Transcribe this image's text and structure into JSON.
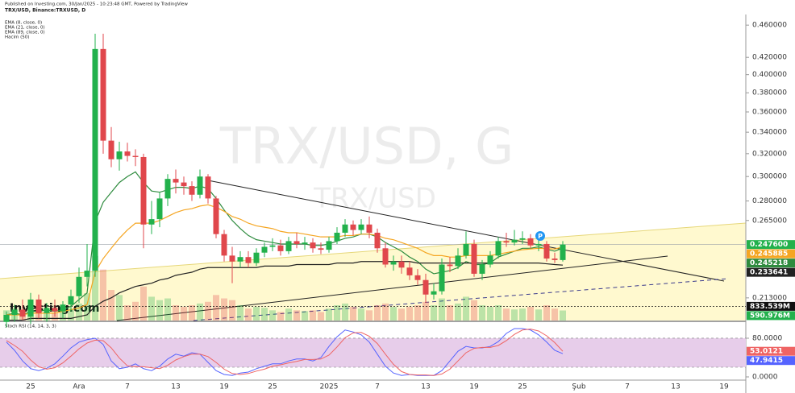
{
  "header": {
    "published": "Published on Investing.com, 30/Jan/2025 - 10:23:48 GMT, Powered by TradingView"
  },
  "watermark": {
    "main": "TRX/USD, G",
    "sub": "TRX/USD"
  },
  "logo": "Investing.com",
  "marker": "P",
  "chart_data": [
    {
      "type": "candlestick",
      "title": "TRX/USD, Binance:TRXUSD, D",
      "categories": [
        null,
        null,
        null,
        "25",
        null,
        null,
        null,
        null,
        null,
        "Ara",
        null,
        null,
        null,
        null,
        null,
        "7",
        null,
        null,
        null,
        null,
        null,
        "13",
        null,
        null,
        null,
        null,
        null,
        "19",
        null,
        null,
        null,
        null,
        null,
        "25",
        null,
        null,
        null,
        null,
        null,
        null,
        "2025",
        null,
        null,
        null,
        null,
        null,
        "7",
        null,
        null,
        null,
        null,
        null,
        "13",
        null,
        null,
        null,
        null,
        null,
        "19",
        null,
        null,
        null,
        null,
        null,
        "25",
        null,
        null,
        null,
        null,
        null,
        null,
        "Şub",
        null,
        null,
        null,
        null,
        null,
        "7",
        null,
        null,
        null,
        null,
        null,
        "13",
        null,
        null,
        null,
        null,
        null,
        "19",
        null,
        null
      ],
      "open": [
        0.199,
        0.203,
        0.206,
        0.202,
        0.212,
        0.204,
        0.207,
        0.205,
        0.209,
        0.214,
        0.226,
        0.23,
        0.43,
        0.332,
        0.315,
        0.322,
        0.318,
        0.317,
        0.262,
        0.266,
        0.282,
        0.298,
        0.295,
        0.292,
        0.285,
        0.3,
        0.282,
        0.255,
        0.24,
        0.236,
        0.239,
        0.235,
        0.242,
        0.246,
        0.247,
        0.243,
        0.25,
        0.248,
        0.249,
        0.245,
        0.244,
        0.25,
        0.256,
        0.262,
        0.258,
        0.262,
        0.256,
        0.245,
        0.234,
        0.236,
        0.232,
        0.227,
        0.224,
        0.215,
        0.217,
        0.234,
        0.233,
        0.24,
        0.248,
        0.228,
        0.234,
        0.24,
        0.25,
        0.249,
        0.251,
        0.252,
        0.247,
        0.248,
        0.238,
        0.237,
        null,
        null,
        null,
        null,
        null,
        null,
        null,
        null,
        null,
        null,
        null,
        null,
        null,
        null,
        null,
        null,
        null,
        null,
        null,
        null,
        null,
        null
      ],
      "high": [
        0.205,
        0.209,
        0.212,
        0.216,
        0.215,
        0.21,
        0.212,
        0.211,
        0.218,
        0.232,
        0.248,
        0.449,
        0.449,
        0.345,
        0.331,
        0.33,
        0.324,
        0.32,
        0.28,
        0.287,
        0.302,
        0.306,
        0.3,
        0.296,
        0.306,
        0.302,
        0.284,
        0.258,
        0.246,
        0.243,
        0.243,
        0.245,
        0.249,
        0.252,
        0.251,
        0.253,
        0.256,
        0.253,
        0.252,
        0.249,
        0.253,
        0.26,
        0.266,
        0.265,
        0.266,
        0.268,
        0.259,
        0.249,
        0.24,
        0.24,
        0.236,
        0.231,
        0.228,
        0.222,
        0.238,
        0.239,
        0.245,
        0.257,
        0.251,
        0.237,
        0.243,
        0.253,
        0.256,
        0.258,
        0.257,
        0.255,
        0.251,
        0.25,
        0.242,
        0.25,
        null,
        null,
        null,
        null,
        null,
        null,
        null,
        null,
        null,
        null,
        null,
        null,
        null,
        null,
        null,
        null,
        null,
        null,
        null,
        null,
        null,
        null
      ],
      "low": [
        0.196,
        0.199,
        0.2,
        0.198,
        0.201,
        0.199,
        0.202,
        0.201,
        0.205,
        0.21,
        0.22,
        0.226,
        0.32,
        0.308,
        0.305,
        0.313,
        0.309,
        0.245,
        0.255,
        0.26,
        0.276,
        0.286,
        0.285,
        0.28,
        0.282,
        0.278,
        0.252,
        0.236,
        0.222,
        0.232,
        0.232,
        0.233,
        0.239,
        0.243,
        0.24,
        0.241,
        0.245,
        0.244,
        0.242,
        0.241,
        0.242,
        0.248,
        0.253,
        0.254,
        0.255,
        0.252,
        0.242,
        0.232,
        0.23,
        0.228,
        0.224,
        0.221,
        0.21,
        0.212,
        0.215,
        0.229,
        0.231,
        0.238,
        0.226,
        0.224,
        0.232,
        0.238,
        0.246,
        0.247,
        0.248,
        0.245,
        0.243,
        0.236,
        0.235,
        0.236,
        null,
        null,
        null,
        null,
        null,
        null,
        null,
        null,
        null,
        null,
        null,
        null,
        null,
        null,
        null,
        null,
        null,
        null,
        null,
        null,
        null,
        null
      ],
      "close": [
        0.203,
        0.206,
        0.202,
        0.212,
        0.204,
        0.207,
        0.205,
        0.209,
        0.214,
        0.226,
        0.23,
        0.43,
        0.332,
        0.315,
        0.322,
        0.318,
        0.317,
        0.262,
        0.266,
        0.282,
        0.298,
        0.295,
        0.292,
        0.285,
        0.3,
        0.282,
        0.255,
        0.24,
        0.236,
        0.239,
        0.235,
        0.242,
        0.246,
        0.247,
        0.243,
        0.25,
        0.248,
        0.249,
        0.245,
        0.244,
        0.25,
        0.256,
        0.262,
        0.258,
        0.262,
        0.256,
        0.245,
        0.234,
        0.236,
        0.232,
        0.227,
        0.224,
        0.215,
        0.217,
        0.234,
        0.233,
        0.24,
        0.248,
        0.228,
        0.234,
        0.24,
        0.25,
        0.249,
        0.251,
        0.252,
        0.247,
        0.248,
        0.238,
        0.237,
        0.2476,
        null,
        null,
        null,
        null,
        null,
        null,
        null,
        null,
        null,
        null,
        null,
        null,
        null,
        null,
        null,
        null,
        null,
        null,
        null,
        null,
        null,
        null
      ],
      "up_color": "#22b14c",
      "down_color": "#e0474c",
      "series": [
        {
          "name": "EMA (8, close, 0)",
          "color": "#2e8b3e",
          "values": [
            0.203,
            0.204,
            0.203,
            0.205,
            0.205,
            0.206,
            0.205,
            0.206,
            0.208,
            0.212,
            0.216,
            0.264,
            0.279,
            0.287,
            0.295,
            0.3,
            0.304,
            0.295,
            0.288,
            0.287,
            0.289,
            0.291,
            0.291,
            0.29,
            0.292,
            0.29,
            0.282,
            0.273,
            0.265,
            0.259,
            0.254,
            0.251,
            0.25,
            0.249,
            0.248,
            0.248,
            0.248,
            0.248,
            0.247,
            0.247,
            0.248,
            0.25,
            0.252,
            0.253,
            0.255,
            0.255,
            0.253,
            0.249,
            0.246,
            0.243,
            0.239,
            0.236,
            0.231,
            0.228,
            0.229,
            0.23,
            0.232,
            0.236,
            0.234,
            0.234,
            0.235,
            0.239,
            0.241,
            0.243,
            0.245,
            0.245,
            0.246,
            0.2443,
            0.243,
            0.245218,
            null,
            null,
            null,
            null,
            null,
            null,
            null,
            null,
            null,
            null,
            null,
            null,
            null,
            null,
            null,
            null,
            null,
            null,
            null,
            null,
            null,
            null
          ]
        },
        {
          "name": "EMA (21, close, 0)",
          "color": "#f5a623",
          "values": [
            0.203,
            0.203,
            0.203,
            0.204,
            0.204,
            0.204,
            0.204,
            0.205,
            0.206,
            0.207,
            0.209,
            0.229,
            0.238,
            0.245,
            0.252,
            0.258,
            0.263,
            0.263,
            0.263,
            0.265,
            0.268,
            0.271,
            0.273,
            0.274,
            0.276,
            0.277,
            0.275,
            0.272,
            0.268,
            0.266,
            0.263,
            0.261,
            0.26,
            0.259,
            0.257,
            0.256,
            0.256,
            0.255,
            0.254,
            0.253,
            0.253,
            0.253,
            0.254,
            0.254,
            0.255,
            0.255,
            0.254,
            0.252,
            0.251,
            0.249,
            0.247,
            0.245,
            0.242,
            0.24,
            0.24,
            0.239,
            0.239,
            0.24,
            0.24,
            0.24,
            0.24,
            0.241,
            0.242,
            0.243,
            0.244,
            0.2445,
            0.245,
            0.2447,
            0.2445,
            0.245885,
            null,
            null,
            null,
            null,
            null,
            null,
            null,
            null,
            null,
            null,
            null,
            null,
            null,
            null,
            null,
            null,
            null,
            null,
            null,
            null,
            null,
            null
          ]
        },
        {
          "name": "EMA (89, close, 0)",
          "color": "#222222",
          "values": [
            0.2,
            0.2,
            0.2,
            0.201,
            0.201,
            0.201,
            0.201,
            0.201,
            0.201,
            0.202,
            0.203,
            0.208,
            0.211,
            0.213,
            0.216,
            0.218,
            0.22,
            0.221,
            0.222,
            0.224,
            0.225,
            0.227,
            0.228,
            0.229,
            0.231,
            0.232,
            0.232,
            0.232,
            0.232,
            0.232,
            0.232,
            0.232,
            0.233,
            0.233,
            0.233,
            0.233,
            0.234,
            0.234,
            0.234,
            0.234,
            0.234,
            0.235,
            0.235,
            0.235,
            0.236,
            0.236,
            0.236,
            0.236,
            0.236,
            0.236,
            0.236,
            0.235,
            0.235,
            0.235,
            0.235,
            0.235,
            0.235,
            0.235,
            0.235,
            0.235,
            0.235,
            0.235,
            0.235,
            0.235,
            0.235,
            0.235,
            0.235,
            0.2345,
            0.234,
            0.233641,
            null,
            null,
            null,
            null,
            null,
            null,
            null,
            null,
            null,
            null,
            null,
            null,
            null,
            null,
            null,
            null,
            null,
            null,
            null,
            null,
            null,
            null
          ]
        }
      ],
      "ylim": [
        0.1998,
        0.474
      ],
      "log": true,
      "grid": false,
      "yticks": [
        {
          "value": 0.46,
          "label": "0.460000"
        },
        {
          "value": 0.42,
          "label": "0.420000"
        },
        {
          "value": 0.4,
          "label": "0.400000"
        },
        {
          "value": 0.38,
          "label": "0.380000"
        },
        {
          "value": 0.36,
          "label": "0.360000"
        },
        {
          "value": 0.34,
          "label": "0.340000"
        },
        {
          "value": 0.32,
          "label": "0.320000"
        },
        {
          "value": 0.3,
          "label": "0.300000"
        },
        {
          "value": 0.28,
          "label": "0.280000"
        },
        {
          "value": 0.265,
          "label": "0.265000"
        },
        {
          "value": 0.213,
          "label": "0.213000"
        }
      ],
      "tags": [
        {
          "value": 0.2476,
          "label": "0.247600",
          "color": "#22b14c"
        },
        {
          "value": 0.245885,
          "label": "0.245885",
          "color": "#f5a623"
        },
        {
          "value": 0.245218,
          "label": "0.245218",
          "color": "#2e8b3e"
        },
        {
          "value": 0.233641,
          "label": "0.233641",
          "color": "#222222"
        }
      ]
    },
    {
      "type": "bar",
      "name": "Hacim (50)",
      "values": [
        600,
        700,
        500,
        800,
        600,
        500,
        450,
        600,
        700,
        1000,
        1600,
        3800,
        3000,
        1800,
        1500,
        900,
        1100,
        2000,
        1400,
        1200,
        1300,
        900,
        800,
        900,
        1000,
        1100,
        1500,
        1300,
        1200,
        900,
        700,
        800,
        750,
        600,
        500,
        700,
        600,
        550,
        600,
        500,
        700,
        900,
        1000,
        800,
        700,
        600,
        900,
        1000,
        800,
        700,
        800,
        900,
        1100,
        900,
        1300,
        900,
        1000,
        1400,
        1200,
        900,
        800,
        900,
        700,
        650,
        700,
        800,
        650,
        900,
        700,
        590.976,
        null,
        null,
        null,
        null,
        null,
        null,
        null,
        null,
        null,
        null,
        null,
        null,
        null,
        null,
        null,
        null,
        null,
        null,
        null,
        null,
        null,
        null
      ],
      "ylim": [
        0,
        18000
      ],
      "tags": [
        {
          "value": 833.539,
          "label": "833.539M",
          "color": "#111111"
        },
        {
          "value": 590.976,
          "label": "590.976M",
          "color": "#22b14c"
        }
      ]
    },
    {
      "type": "line",
      "title": "Stoch RSI (14, 14, 3, 3)",
      "series": [
        {
          "color": "#5563ff",
          "values": [
            72,
            55,
            33,
            17,
            13,
            18,
            27,
            43,
            60,
            72,
            77,
            80,
            67,
            33,
            17,
            20,
            27,
            17,
            13,
            22,
            37,
            47,
            43,
            50,
            47,
            30,
            13,
            5,
            3,
            8,
            10,
            17,
            22,
            27,
            27,
            33,
            37,
            37,
            33,
            40,
            63,
            83,
            97,
            93,
            87,
            72,
            47,
            22,
            8,
            3,
            5,
            3,
            3,
            3,
            13,
            33,
            53,
            63,
            60,
            60,
            63,
            73,
            90,
            100,
            100,
            97,
            87,
            72,
            55,
            47.9415,
            null,
            null,
            null,
            null,
            null,
            null,
            null,
            null,
            null,
            null,
            null,
            null,
            null,
            null,
            null,
            null,
            null,
            null,
            null,
            null,
            null,
            null
          ]
        },
        {
          "color": "#ef6464",
          "values": [
            75,
            65,
            53,
            35,
            21,
            16,
            19,
            29,
            43,
            58,
            70,
            76,
            75,
            60,
            39,
            23,
            21,
            21,
            19,
            17,
            24,
            35,
            42,
            47,
            47,
            42,
            30,
            16,
            7,
            5,
            7,
            12,
            16,
            22,
            25,
            29,
            32,
            36,
            36,
            37,
            45,
            62,
            81,
            91,
            92,
            84,
            69,
            47,
            26,
            11,
            5,
            4,
            4,
            3,
            6,
            16,
            33,
            50,
            59,
            61,
            61,
            65,
            75,
            88,
            97,
            99,
            95,
            85,
            71,
            53.0121,
            null,
            null,
            null,
            null,
            null,
            null,
            null,
            null,
            null,
            null,
            null,
            null,
            null,
            null,
            null,
            null,
            null,
            null,
            null,
            null,
            null,
            null
          ]
        }
      ],
      "ylim": [
        -20,
        113.3
      ],
      "bands": [
        20,
        80
      ],
      "yticks": [
        {
          "value": 80,
          "label": "80.0000"
        },
        {
          "value": 0,
          "label": "0.0000"
        }
      ],
      "tags": [
        {
          "value": 53.0121,
          "label": "53.0121",
          "color": "#ef6464"
        },
        {
          "value": 47.9415,
          "label": "47.9415",
          "color": "#5563ff"
        }
      ]
    }
  ]
}
